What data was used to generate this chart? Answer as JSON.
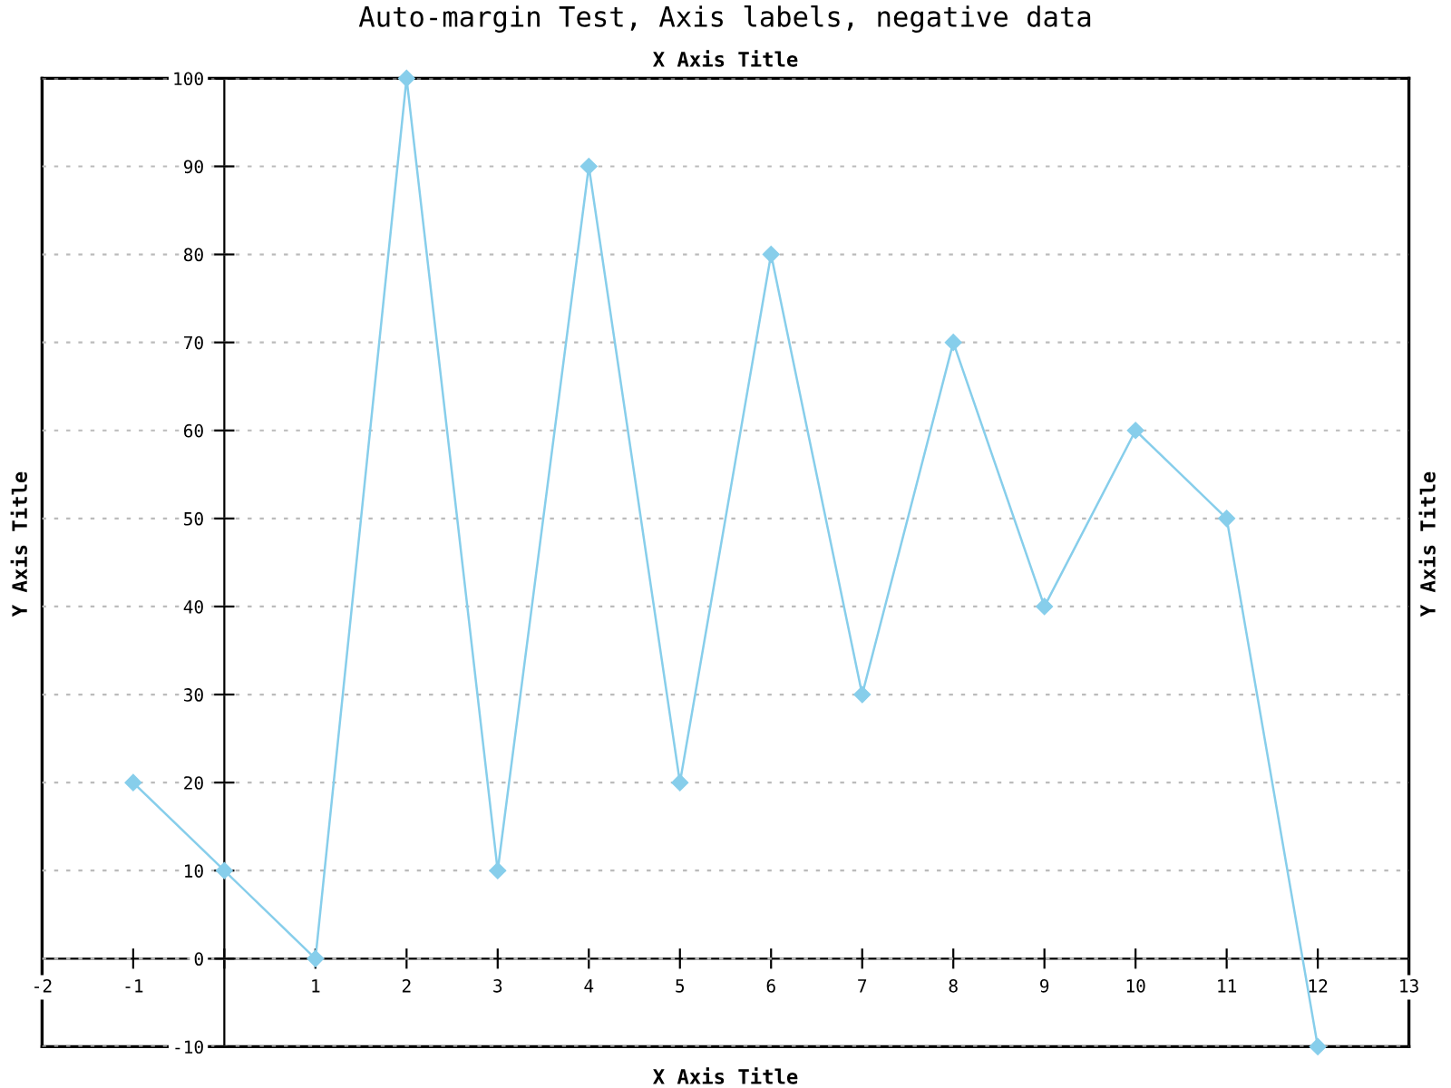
{
  "chart_data": {
    "type": "line",
    "title": "Auto-margin Test, Axis labels, negative data",
    "xlabel": "X Axis Title",
    "x2label": "X Axis Title",
    "ylabel": "Y Axis Title",
    "y2label": "Y Axis Title",
    "x": [
      -1,
      0,
      1,
      2,
      3,
      4,
      5,
      6,
      7,
      8,
      9,
      10,
      11,
      12
    ],
    "series": [
      {
        "color": "#87ceeb",
        "values": [
          20,
          10,
          0,
          100,
          10,
          90,
          20,
          80,
          30,
          70,
          40,
          60,
          50,
          -10
        ]
      }
    ],
    "marker": "diamond",
    "line_style": "solid",
    "grid": "y",
    "xlim": [
      -2,
      13
    ],
    "xticks": [
      -2,
      -1,
      {
        "value": 0,
        "label": null
      },
      1,
      2,
      3,
      4,
      5,
      6,
      7,
      8,
      9,
      10,
      11,
      12,
      13
    ],
    "ylim": [
      -10,
      100
    ],
    "yticks": [
      -10,
      0,
      10,
      20,
      30,
      40,
      50,
      60,
      70,
      80,
      90,
      100
    ]
  }
}
